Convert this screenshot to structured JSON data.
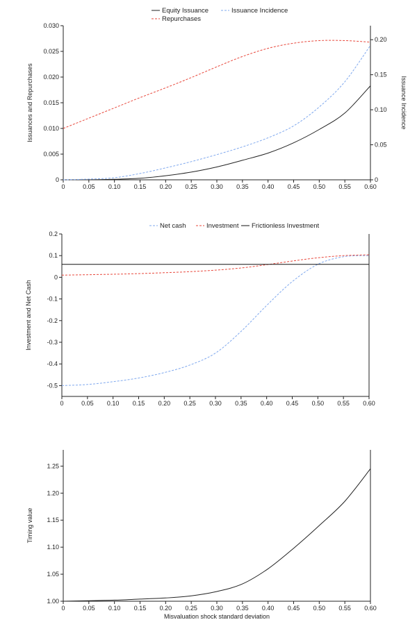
{
  "chart_data": [
    {
      "type": "line",
      "ylabel": "Issuances and Repurchases",
      "y2label": "Issuance Incidence",
      "xlim": [
        0,
        0.6
      ],
      "ylim": [
        0,
        0.03
      ],
      "y2lim": [
        0,
        0.22
      ],
      "xticks": [
        "0",
        "0.05",
        "0.10",
        "0.15",
        "0.20",
        "0.25",
        "0.30",
        "0.35",
        "0.40",
        "0.45",
        "0.50",
        "0.55",
        "0.60"
      ],
      "yticks": [
        "0",
        "0.005",
        "0.010",
        "0.015",
        "0.020",
        "0.025",
        "0.030"
      ],
      "y2ticks": [
        "0",
        "0.05",
        "0.10",
        "0.15",
        "0.20"
      ],
      "legend_position": "top",
      "series": [
        {
          "name": "Equity Issuance",
          "axis": "left",
          "color": "#222222",
          "dash": "solid",
          "x": [
            0,
            0.05,
            0.1,
            0.15,
            0.2,
            0.25,
            0.3,
            0.35,
            0.4,
            0.45,
            0.5,
            0.55,
            0.6
          ],
          "values": [
            0,
            0,
            0.0001,
            0.0003,
            0.0008,
            0.0015,
            0.0025,
            0.0038,
            0.0052,
            0.0072,
            0.0098,
            0.013,
            0.0183
          ]
        },
        {
          "name": "Issuance Incidence",
          "axis": "right",
          "color": "#7fa8ee",
          "dash": "dashed",
          "x": [
            0,
            0.05,
            0.1,
            0.15,
            0.2,
            0.25,
            0.3,
            0.35,
            0.4,
            0.45,
            0.5,
            0.55,
            0.6
          ],
          "values": [
            0,
            0.001,
            0.003,
            0.009,
            0.017,
            0.026,
            0.036,
            0.047,
            0.06,
            0.077,
            0.104,
            0.14,
            0.192
          ]
        },
        {
          "name": "Repurchases",
          "axis": "left",
          "color": "#e8473b",
          "dash": "dashed",
          "x": [
            0,
            0.05,
            0.1,
            0.15,
            0.2,
            0.25,
            0.3,
            0.35,
            0.4,
            0.45,
            0.5,
            0.55,
            0.6
          ],
          "values": [
            0.01,
            0.012,
            0.014,
            0.016,
            0.0179,
            0.0199,
            0.022,
            0.024,
            0.0256,
            0.0266,
            0.0271,
            0.0271,
            0.0268
          ]
        }
      ]
    },
    {
      "type": "line",
      "ylabel": "Investment and Net Cash",
      "xlim": [
        0,
        0.6
      ],
      "ylim": [
        -0.55,
        0.2
      ],
      "xticks": [
        "0",
        "0.05",
        "0.10",
        "0.15",
        "0.20",
        "0.25",
        "0.30",
        "0.35",
        "0.40",
        "0.45",
        "0.50",
        "0.55",
        "0.60"
      ],
      "yticks": [
        "-0.5",
        "-0.4",
        "-0.3",
        "-0.2",
        "-0.1",
        "0",
        "0.1",
        "0.2"
      ],
      "legend_position": "top",
      "series": [
        {
          "name": "Net cash",
          "color": "#7fa8ee",
          "dash": "dashed",
          "x": [
            0,
            0.05,
            0.1,
            0.15,
            0.2,
            0.25,
            0.3,
            0.35,
            0.4,
            0.45,
            0.5,
            0.55,
            0.6
          ],
          "values": [
            -0.5,
            -0.495,
            -0.482,
            -0.465,
            -0.44,
            -0.405,
            -0.35,
            -0.25,
            -0.13,
            -0.02,
            0.06,
            0.095,
            0.1
          ]
        },
        {
          "name": "Investment",
          "color": "#e8473b",
          "dash": "dashed",
          "x": [
            0,
            0.05,
            0.1,
            0.15,
            0.2,
            0.25,
            0.3,
            0.35,
            0.4,
            0.45,
            0.5,
            0.55,
            0.6
          ],
          "values": [
            0.01,
            0.012,
            0.014,
            0.017,
            0.021,
            0.026,
            0.033,
            0.043,
            0.058,
            0.075,
            0.09,
            0.1,
            0.104
          ]
        },
        {
          "name": "Frictionless Investment",
          "color": "#111111",
          "dash": "solid",
          "x": [
            0,
            0.6
          ],
          "values": [
            0.06,
            0.06
          ]
        }
      ]
    },
    {
      "type": "line",
      "xlabel": "Misvaluation shock standard deviation",
      "ylabel": "Timing value",
      "xlim": [
        0,
        0.6
      ],
      "ylim": [
        1.0,
        1.28
      ],
      "xticks": [
        "0",
        "0.05",
        "0.10",
        "0.15",
        "0.20",
        "0.25",
        "0.30",
        "0.35",
        "0.40",
        "0.45",
        "0.50",
        "0.55",
        "0.60"
      ],
      "yticks": [
        "1.00",
        "1.05",
        "1.10",
        "1.15",
        "1.20",
        "1.25"
      ],
      "series": [
        {
          "color": "#222222",
          "dash": "solid",
          "x": [
            0,
            0.05,
            0.1,
            0.15,
            0.2,
            0.25,
            0.3,
            0.35,
            0.4,
            0.45,
            0.5,
            0.55,
            0.6
          ],
          "values": [
            1.0,
            1.001,
            1.002,
            1.004,
            1.006,
            1.01,
            1.018,
            1.032,
            1.06,
            1.098,
            1.14,
            1.185,
            1.245
          ]
        }
      ]
    }
  ]
}
